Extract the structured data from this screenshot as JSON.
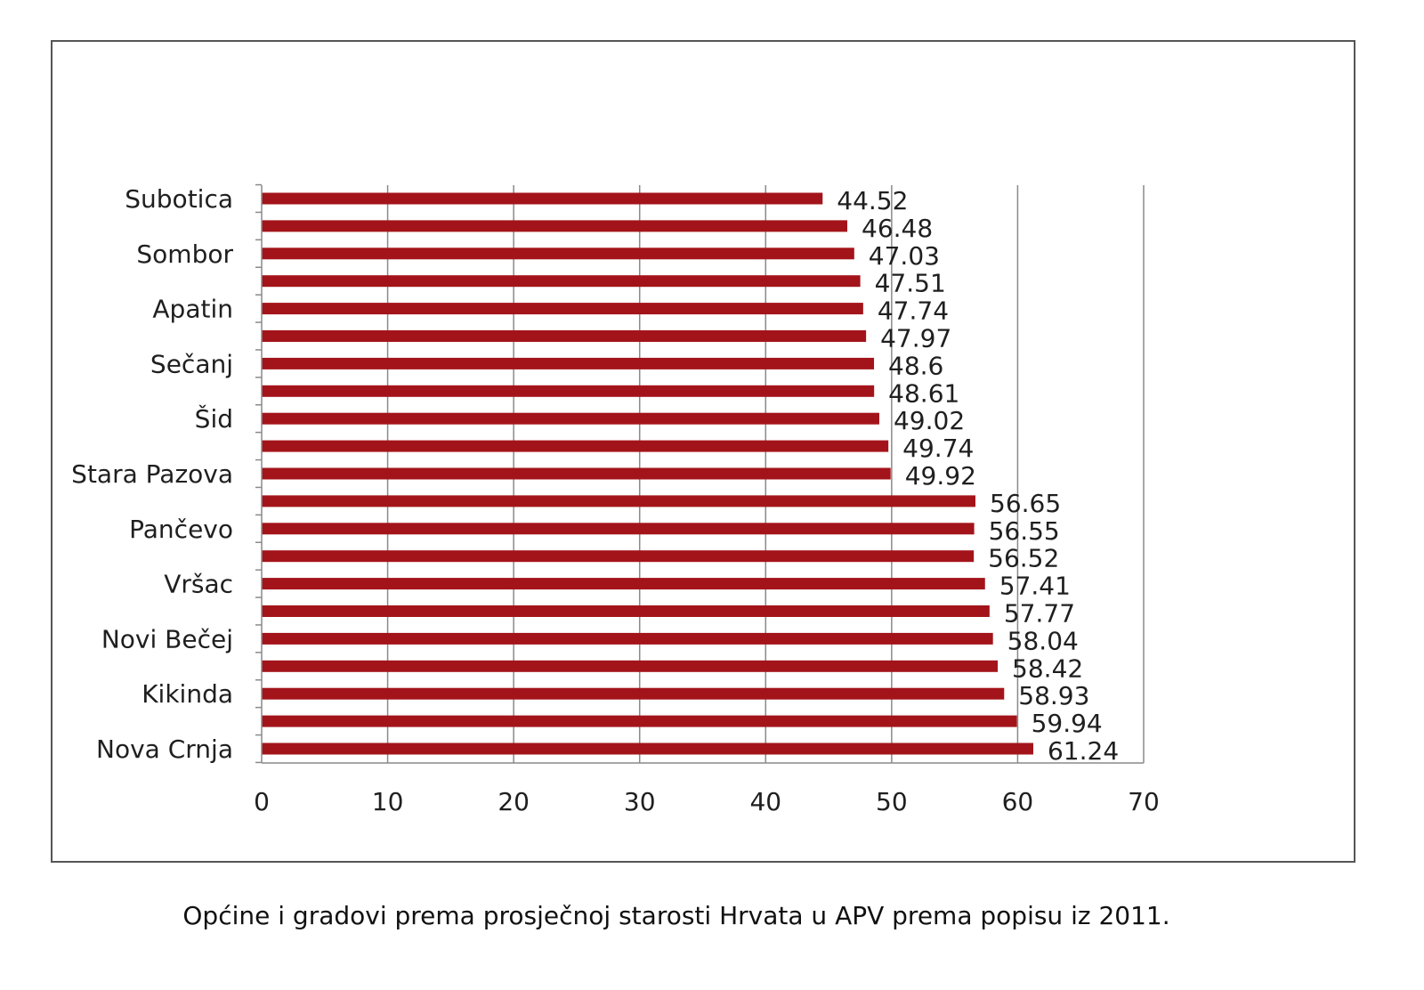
{
  "caption": "Općine i gradovi prema prosječnoj starosti Hrvata u APV prema popisu iz 2011.",
  "chart_data": {
    "type": "bar",
    "orientation": "horizontal",
    "title": "",
    "xlabel": "",
    "ylabel": "",
    "xlim": [
      0,
      70
    ],
    "x_ticks": [
      0,
      10,
      20,
      30,
      40,
      50,
      60,
      70
    ],
    "grid": "vertical",
    "bar_color": "#a3141a",
    "categories": [
      "Subotica",
      "",
      "Sombor",
      "",
      "Apatin",
      "",
      "Sečanj",
      "",
      "Šid",
      "",
      "Stara Pazova",
      "",
      "Pančevo",
      "",
      "Vršac",
      "",
      "Novi Bečej",
      "",
      "Kikinda",
      "",
      "Nova Crnja"
    ],
    "values": [
      44.52,
      46.48,
      47.03,
      47.51,
      47.74,
      47.97,
      48.6,
      48.61,
      49.02,
      49.74,
      49.92,
      56.65,
      56.55,
      56.52,
      57.41,
      57.77,
      58.04,
      58.42,
      58.93,
      59.94,
      61.24
    ],
    "value_labels": [
      "44.52",
      "46.48",
      "47.03",
      "47.51",
      "47.74",
      "47.97",
      "48.6",
      "48.61",
      "49.02",
      "49.74",
      "49.92",
      "56.65",
      "56.55",
      "56.52",
      "57.41",
      "57.77",
      "58.04",
      "58.42",
      "58.93",
      "59.94",
      "61.24"
    ]
  }
}
